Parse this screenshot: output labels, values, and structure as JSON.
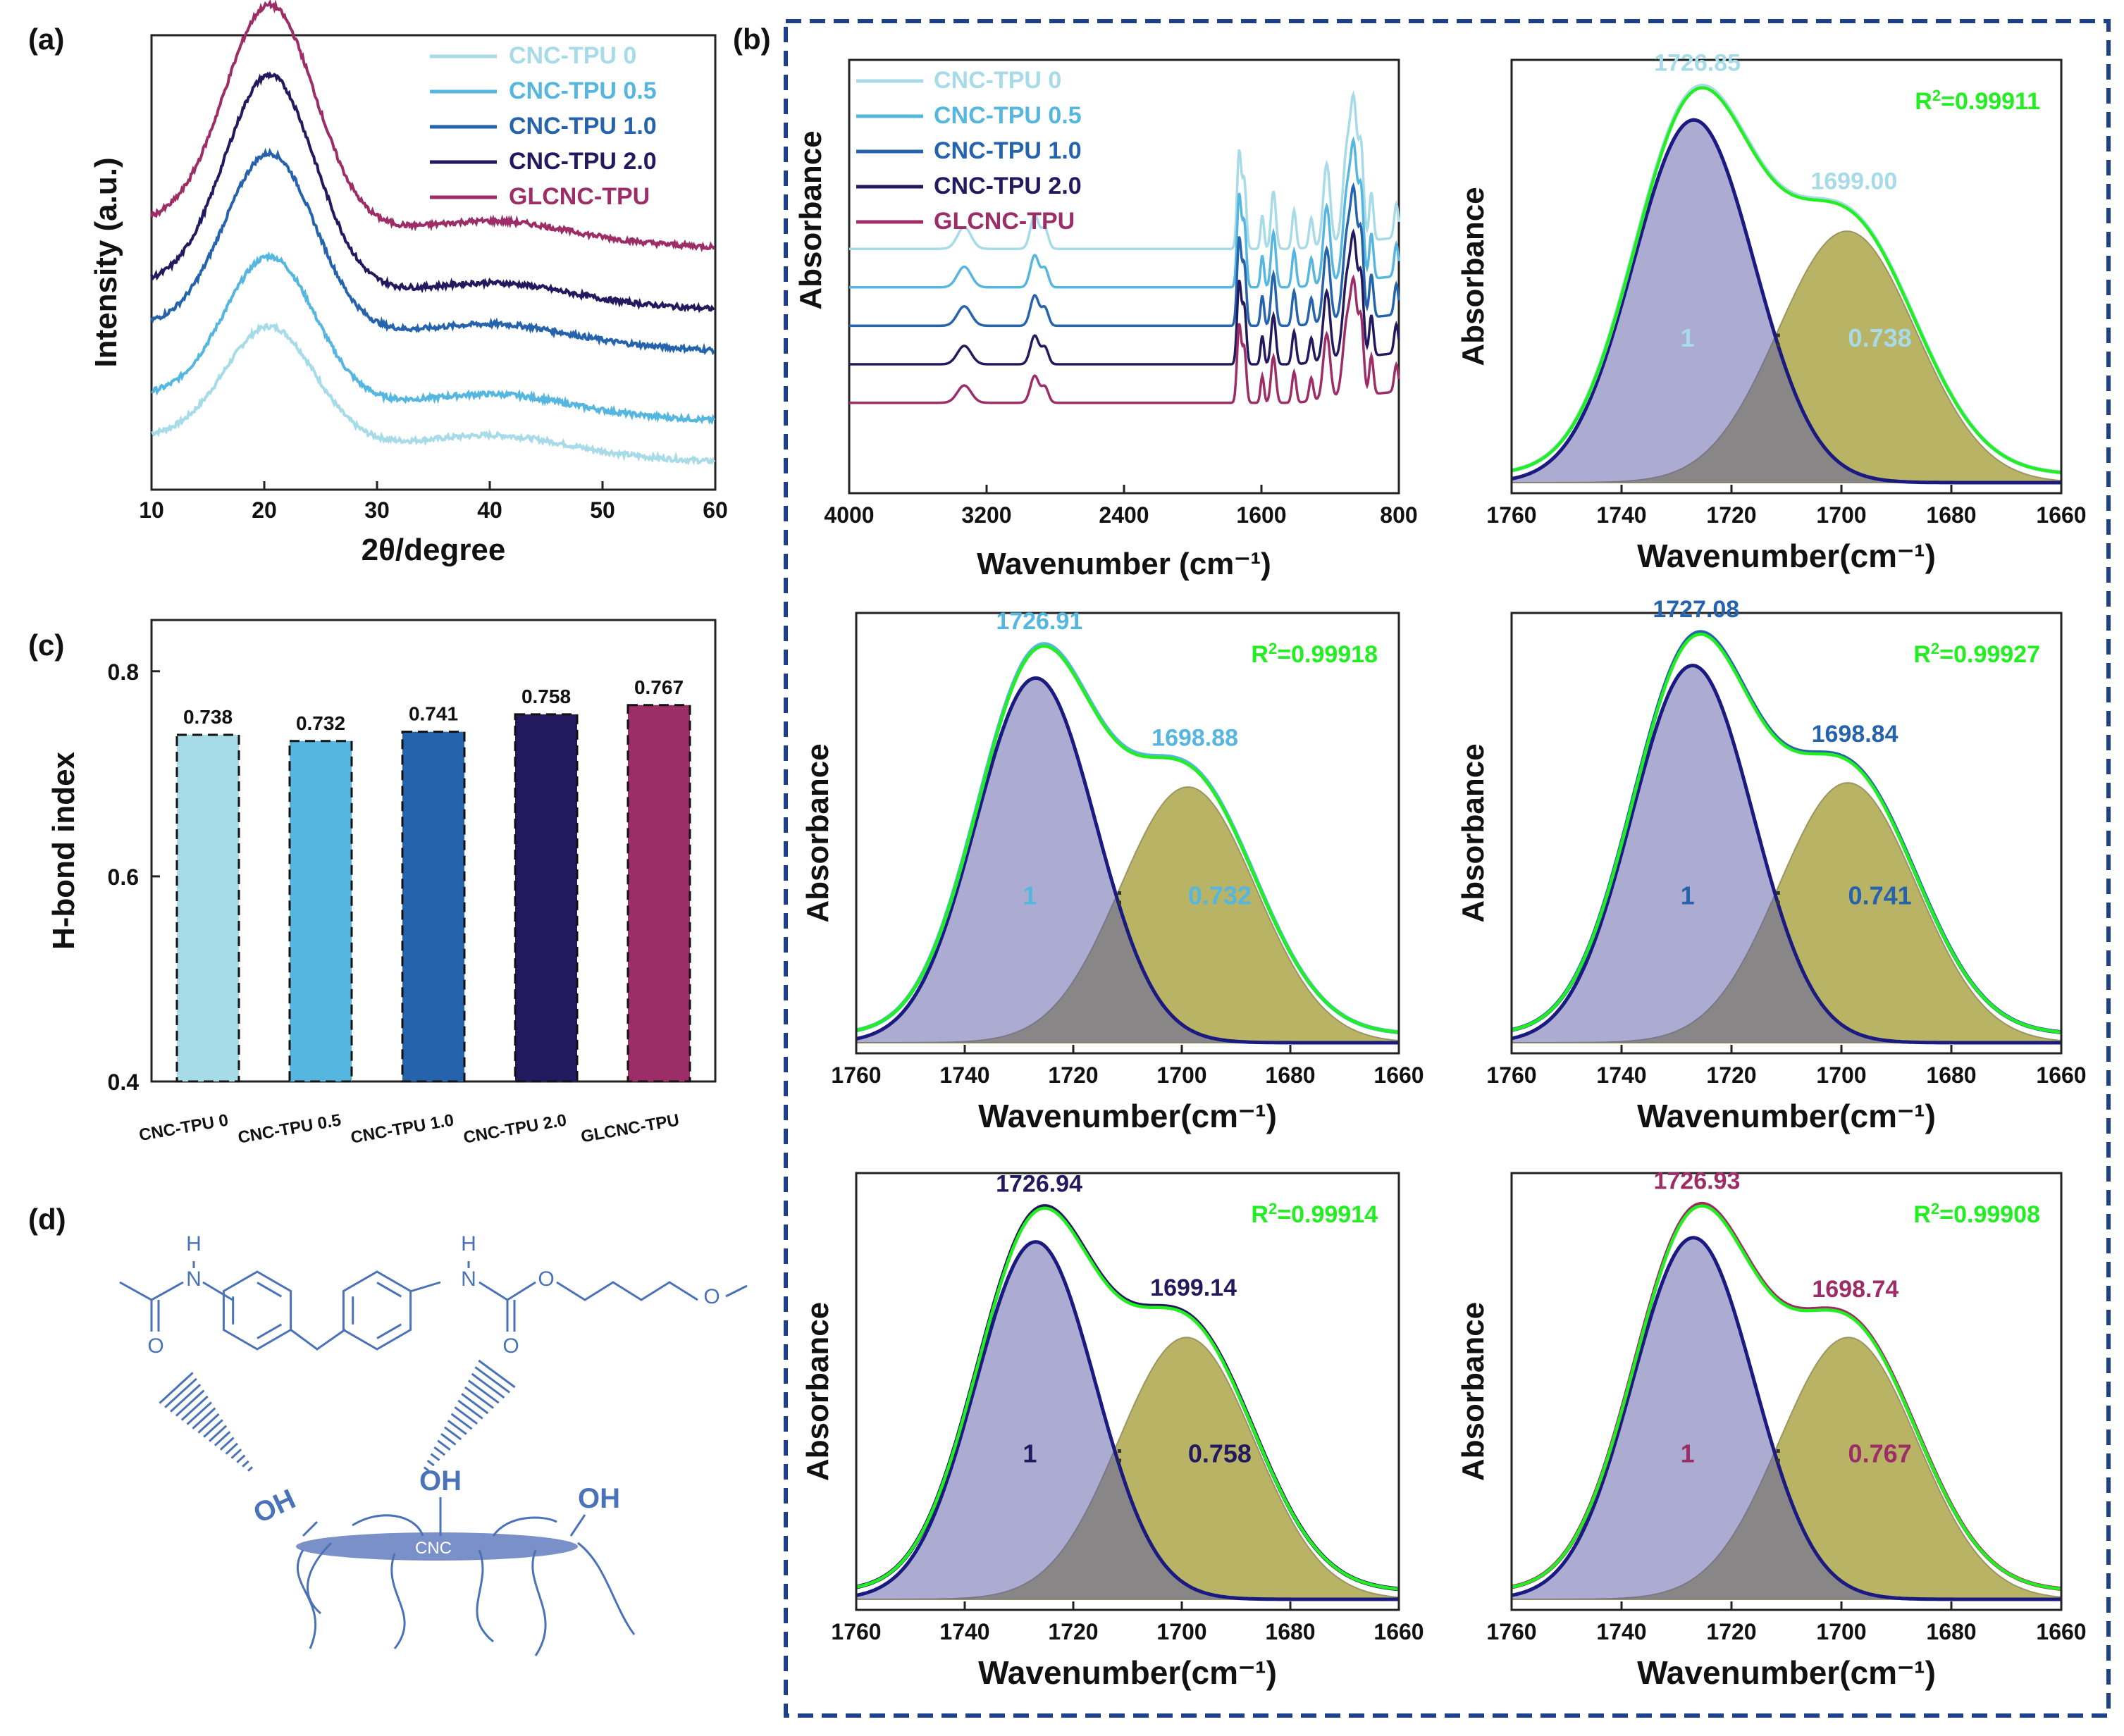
{
  "panel_labels": {
    "a": "(a)",
    "b": "(b)",
    "c": "(c)",
    "d": "(d)"
  },
  "series_names": [
    "CNC-TPU 0",
    "CNC-TPU 0.5",
    "CNC-TPU 1.0",
    "CNC-TPU 2.0",
    "GLCNC-TPU"
  ],
  "colors": {
    "CNC-TPU 0": "#a8dbe8",
    "CNC-TPU 0.5": "#55b6e0",
    "CNC-TPU 1.0": "#2563ac",
    "CNC-TPU 2.0": "#22195e",
    "GLCNC-TPU": "#9c2d66",
    "fit": "#22ee22",
    "free_band": "#1a1a80",
    "bonded_band": "#8a8000",
    "frame_b": "#1e3f8a"
  },
  "chart_data": [
    {
      "id": "a",
      "type": "line",
      "title": "",
      "xlabel": "2θ/degree",
      "ylabel": "Intensity (a.u.)",
      "xlim": [
        10,
        60
      ],
      "xticks": [
        "10",
        "20",
        "30",
        "40",
        "50",
        "60"
      ],
      "legend": "top-right",
      "peak_2theta": 20.5,
      "series": [
        {
          "name": "CNC-TPU 0",
          "offset": 0.0,
          "peak_height": 0.28
        },
        {
          "name": "CNC-TPU 0.5",
          "offset": 0.1,
          "peak_height": 0.35
        },
        {
          "name": "CNC-TPU 1.0",
          "offset": 0.27,
          "peak_height": 0.43
        },
        {
          "name": "CNC-TPU 2.0",
          "offset": 0.37,
          "peak_height": 0.52
        },
        {
          "name": "GLCNC-TPU",
          "offset": 0.52,
          "peak_height": 0.54
        }
      ]
    },
    {
      "id": "b1",
      "type": "line",
      "title": "",
      "xlabel": "Wavenumber (cm⁻¹)",
      "ylabel": "Absorbance",
      "xlim": [
        4000,
        800
      ],
      "xticks": [
        "4000",
        "3200",
        "2400",
        "1600",
        "800"
      ],
      "legend": "top-left",
      "peaks_cm": [
        3330,
        2920,
        2860,
        1730,
        1700,
        1530,
        1410,
        1220,
        1100,
        1060,
        1020,
        960
      ],
      "series": [
        {
          "name": "CNC-TPU 0",
          "offset": 0.4
        },
        {
          "name": "CNC-TPU 0.5",
          "offset": 0.3
        },
        {
          "name": "CNC-TPU 1.0",
          "offset": 0.2
        },
        {
          "name": "CNC-TPU 2.0",
          "offset": 0.1
        },
        {
          "name": "GLCNC-TPU",
          "offset": 0.0
        }
      ]
    },
    {
      "id": "b2",
      "type": "area",
      "sample": "CNC-TPU 0",
      "xlabel": "Wavenumber(cm⁻¹)",
      "ylabel": "Absorbance",
      "xlim": [
        1760,
        1660
      ],
      "xticks": [
        "1760",
        "1740",
        "1720",
        "1700",
        "1680",
        "1660"
      ],
      "peak1": "1726.85",
      "peak2": "1699.00",
      "r2_label": "R",
      "r2_sup": "2",
      "r2_value": "=0.99911",
      "ratio_left": "1",
      "ratio_colon": ":",
      "ratio_right": "0.738",
      "band1": {
        "center": 1726.85,
        "height": 0.88,
        "sigma": 11.0
      },
      "band2": {
        "center": 1699.0,
        "height": 0.61,
        "sigma": 12.5
      }
    },
    {
      "id": "b3",
      "type": "area",
      "sample": "CNC-TPU 0.5",
      "xlabel": "Wavenumber(cm⁻¹)",
      "ylabel": "Absorbance",
      "xlim": [
        1760,
        1660
      ],
      "xticks": [
        "1760",
        "1740",
        "1720",
        "1700",
        "1680",
        "1660"
      ],
      "peak1": "1726.91",
      "peak2": "1698.88",
      "r2_label": "R",
      "r2_sup": "2",
      "r2_value": "=0.99918",
      "ratio_left": "1",
      "ratio_colon": ":",
      "ratio_right": "0.732",
      "band1": {
        "center": 1726.91,
        "height": 0.87,
        "sigma": 11.0
      },
      "band2": {
        "center": 1698.88,
        "height": 0.61,
        "sigma": 12.5
      }
    },
    {
      "id": "b4",
      "type": "area",
      "sample": "CNC-TPU 1.0",
      "xlabel": "Wavenumber(cm⁻¹)",
      "ylabel": "Absorbance",
      "xlim": [
        1760,
        1660
      ],
      "xticks": [
        "1760",
        "1740",
        "1720",
        "1700",
        "1680",
        "1660"
      ],
      "peak1": "1727.08",
      "peak2": "1698.84",
      "r2_label": "R",
      "r2_sup": "2",
      "r2_value": "=0.99927",
      "ratio_left": "1",
      "ratio_colon": ":",
      "ratio_right": "0.741",
      "band1": {
        "center": 1727.08,
        "height": 0.9,
        "sigma": 11.0
      },
      "band2": {
        "center": 1698.84,
        "height": 0.62,
        "sigma": 12.5
      }
    },
    {
      "id": "b5",
      "type": "area",
      "sample": "CNC-TPU 2.0",
      "xlabel": "Wavenumber(cm⁻¹)",
      "ylabel": "Absorbance",
      "xlim": [
        1760,
        1660
      ],
      "xticks": [
        "1760",
        "1740",
        "1720",
        "1700",
        "1680",
        "1660"
      ],
      "peak1": "1726.94",
      "peak2": "1699.14",
      "r2_label": "R",
      "r2_sup": "2",
      "r2_value": "=0.99914",
      "ratio_left": "1",
      "ratio_colon": ":",
      "ratio_right": "0.758",
      "band1": {
        "center": 1726.94,
        "height": 0.86,
        "sigma": 11.0
      },
      "band2": {
        "center": 1699.14,
        "height": 0.63,
        "sigma": 12.5
      }
    },
    {
      "id": "b6",
      "type": "area",
      "sample": "GLCNC-TPU",
      "xlabel": "Wavenumber(cm⁻¹)",
      "ylabel": "Absorbance",
      "xlim": [
        1760,
        1660
      ],
      "xticks": [
        "1760",
        "1740",
        "1720",
        "1700",
        "1680",
        "1660"
      ],
      "peak1": "1726.93",
      "peak2": "1698.74",
      "r2_label": "R",
      "r2_sup": "2",
      "r2_value": "=0.99908",
      "ratio_left": "1",
      "ratio_colon": ":",
      "ratio_right": "0.767",
      "band1": {
        "center": 1726.93,
        "height": 0.87,
        "sigma": 11.0
      },
      "band2": {
        "center": 1698.74,
        "height": 0.63,
        "sigma": 12.5
      }
    },
    {
      "id": "c",
      "type": "bar",
      "title": "",
      "xlabel": "",
      "ylabel": "H-bond index",
      "ylim": [
        0.4,
        0.85
      ],
      "yticks": [
        "0.4",
        "0.6",
        "0.8"
      ],
      "categories": [
        "CNC-TPU 0",
        "CNC-TPU 0.5",
        "CNC-TPU 1.0",
        "CNC-TPU 2.0",
        "GLCNC-TPU"
      ],
      "values": [
        0.738,
        0.732,
        0.741,
        0.758,
        0.767
      ],
      "value_labels": [
        "0.738",
        "0.732",
        "0.741",
        "0.758",
        "0.767"
      ]
    }
  ],
  "schematic": {
    "labels": [
      "H",
      "N",
      "H",
      "N",
      "O",
      "O",
      "O",
      "O",
      "OH",
      "OH",
      "OH",
      "CNC"
    ]
  }
}
